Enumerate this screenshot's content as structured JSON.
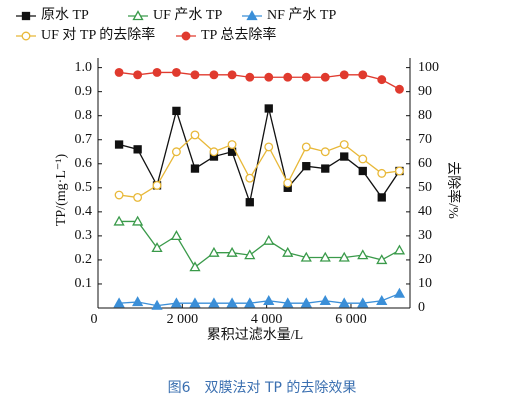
{
  "chart_data": {
    "type": "line",
    "x": [
      500,
      940,
      1400,
      1860,
      2300,
      2750,
      3180,
      3600,
      4050,
      4500,
      4940,
      5390,
      5840,
      6280,
      6730,
      7150
    ],
    "xlim": [
      0,
      7400
    ],
    "xticks": [
      0,
      {
        "value": 2000,
        "label": "2 000"
      },
      {
        "value": 4000,
        "label": "4 000"
      },
      {
        "value": 6000,
        "label": "6 000"
      }
    ],
    "ylim": [
      0,
      1.04
    ],
    "yticks": [
      {
        "value": 0.1,
        "label": "0.1"
      },
      {
        "value": 0.2,
        "label": "0.2"
      },
      {
        "value": 0.3,
        "label": "0.3"
      },
      {
        "value": 0.4,
        "label": "0.4"
      },
      {
        "value": 0.5,
        "label": "0.5"
      },
      {
        "value": 0.6,
        "label": "0.6"
      },
      {
        "value": 0.7,
        "label": "0.7"
      },
      {
        "value": 0.8,
        "label": "0.8"
      },
      {
        "value": 0.9,
        "label": "0.9"
      },
      {
        "value": 1,
        "label": "1.0"
      }
    ],
    "y2lim": [
      0,
      104
    ],
    "y2ticks": [
      0,
      10,
      20,
      30,
      40,
      50,
      60,
      70,
      80,
      90,
      100
    ],
    "xlabel": "累积过滤水量/L",
    "ylabel": "TP/(mg·L⁻¹)",
    "y2label": "去除率/%",
    "caption": "图6　双膜法对 TP 的去除效果",
    "series": [
      {
        "name": "原水 TP",
        "color": "#111111",
        "marker": "square",
        "filled": true,
        "values": [
          0.68,
          0.66,
          0.51,
          0.82,
          0.58,
          0.63,
          0.65,
          0.44,
          0.83,
          0.5,
          0.59,
          0.58,
          0.63,
          0.57,
          0.46,
          0.57
        ]
      },
      {
        "name": "UF 产水 TP",
        "color": "#3a9a4a",
        "marker": "triangle",
        "filled": false,
        "values": [
          0.36,
          0.36,
          0.25,
          0.3,
          0.17,
          0.23,
          0.23,
          0.22,
          0.28,
          0.23,
          0.21,
          0.21,
          0.21,
          0.22,
          0.2,
          0.24
        ]
      },
      {
        "name": "NF 产水 TP",
        "color": "#3b8fd8",
        "marker": "triangle",
        "filled": true,
        "values": [
          0.02,
          0.025,
          0.01,
          0.02,
          0.02,
          0.02,
          0.02,
          0.02,
          0.03,
          0.02,
          0.02,
          0.03,
          0.02,
          0.02,
          0.03,
          0.06
        ]
      },
      {
        "name": "UF 对 TP 的去除率",
        "color": "#e8b838",
        "marker": "circle",
        "filled": false,
        "axis": "y2",
        "values": [
          47,
          46,
          51,
          65,
          72,
          65,
          68,
          54,
          67,
          52,
          67,
          65,
          68,
          62,
          56,
          57
        ]
      },
      {
        "name": "TP 总去除率",
        "color": "#e03a2e",
        "marker": "circle",
        "filled": true,
        "axis": "y2",
        "values": [
          98,
          97,
          98,
          98,
          97,
          97,
          97,
          96,
          96,
          96,
          96,
          96,
          97,
          97,
          95,
          91
        ]
      }
    ]
  }
}
